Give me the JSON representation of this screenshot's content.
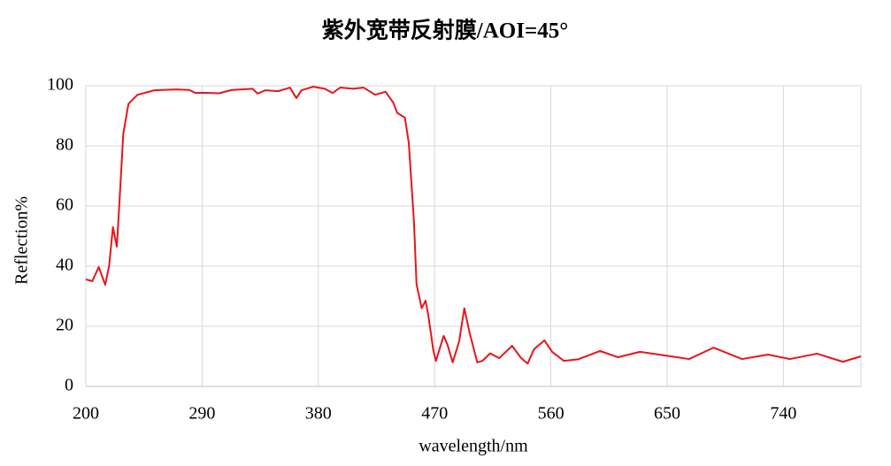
{
  "chart_data": {
    "type": "line",
    "title": "紫外宽带反射膜/AOI=45°",
    "x_label": "wavelength/nm",
    "y_label": "Reflection%",
    "x": [
      200,
      205,
      210,
      215,
      218,
      221,
      224,
      226,
      229,
      233,
      240,
      253,
      270,
      280,
      285,
      291,
      303,
      313,
      329,
      333,
      339,
      349,
      358,
      363,
      367,
      376,
      385,
      391,
      397,
      407,
      415,
      424,
      432,
      438,
      441,
      447,
      450,
      454,
      456,
      460,
      463,
      465,
      469,
      471,
      477,
      480,
      484,
      489,
      493,
      497,
      503,
      507,
      513,
      520,
      530,
      537,
      542,
      547,
      555,
      561,
      570,
      581,
      598,
      612,
      629,
      653,
      667,
      686,
      708,
      728,
      745,
      766,
      786,
      800
    ],
    "series": [
      {
        "name": "Reflection",
        "color": "#e8141c",
        "values": [
          35.6,
          35,
          39.7,
          33.8,
          40,
          53,
          46.5,
          61,
          84,
          94,
          97,
          98.5,
          98.8,
          98.6,
          97.6,
          97.7,
          97.5,
          98.6,
          99,
          97.4,
          98.5,
          98.2,
          99.4,
          95.9,
          98.5,
          99.7,
          99,
          97.6,
          99.4,
          99,
          99.4,
          97,
          98,
          94.4,
          91,
          89.4,
          81,
          55,
          34,
          26,
          28.5,
          24,
          12,
          8.5,
          16.8,
          13.8,
          8,
          15,
          26,
          18,
          8,
          8.5,
          11,
          9.4,
          13.5,
          9.4,
          7.6,
          12.4,
          15.3,
          11.5,
          8.5,
          9,
          11.8,
          9.7,
          11.5,
          10,
          9.1,
          12.9,
          9.1,
          10.6,
          9.1,
          10.9,
          8.2,
          10
        ]
      }
    ],
    "xlim": [
      200,
      800
    ],
    "xticks": [
      200,
      290,
      380,
      470,
      560,
      650,
      740
    ],
    "ylim": [
      0,
      100
    ],
    "yticks": [
      0,
      20,
      40,
      60,
      80,
      100
    ],
    "grid": true
  }
}
